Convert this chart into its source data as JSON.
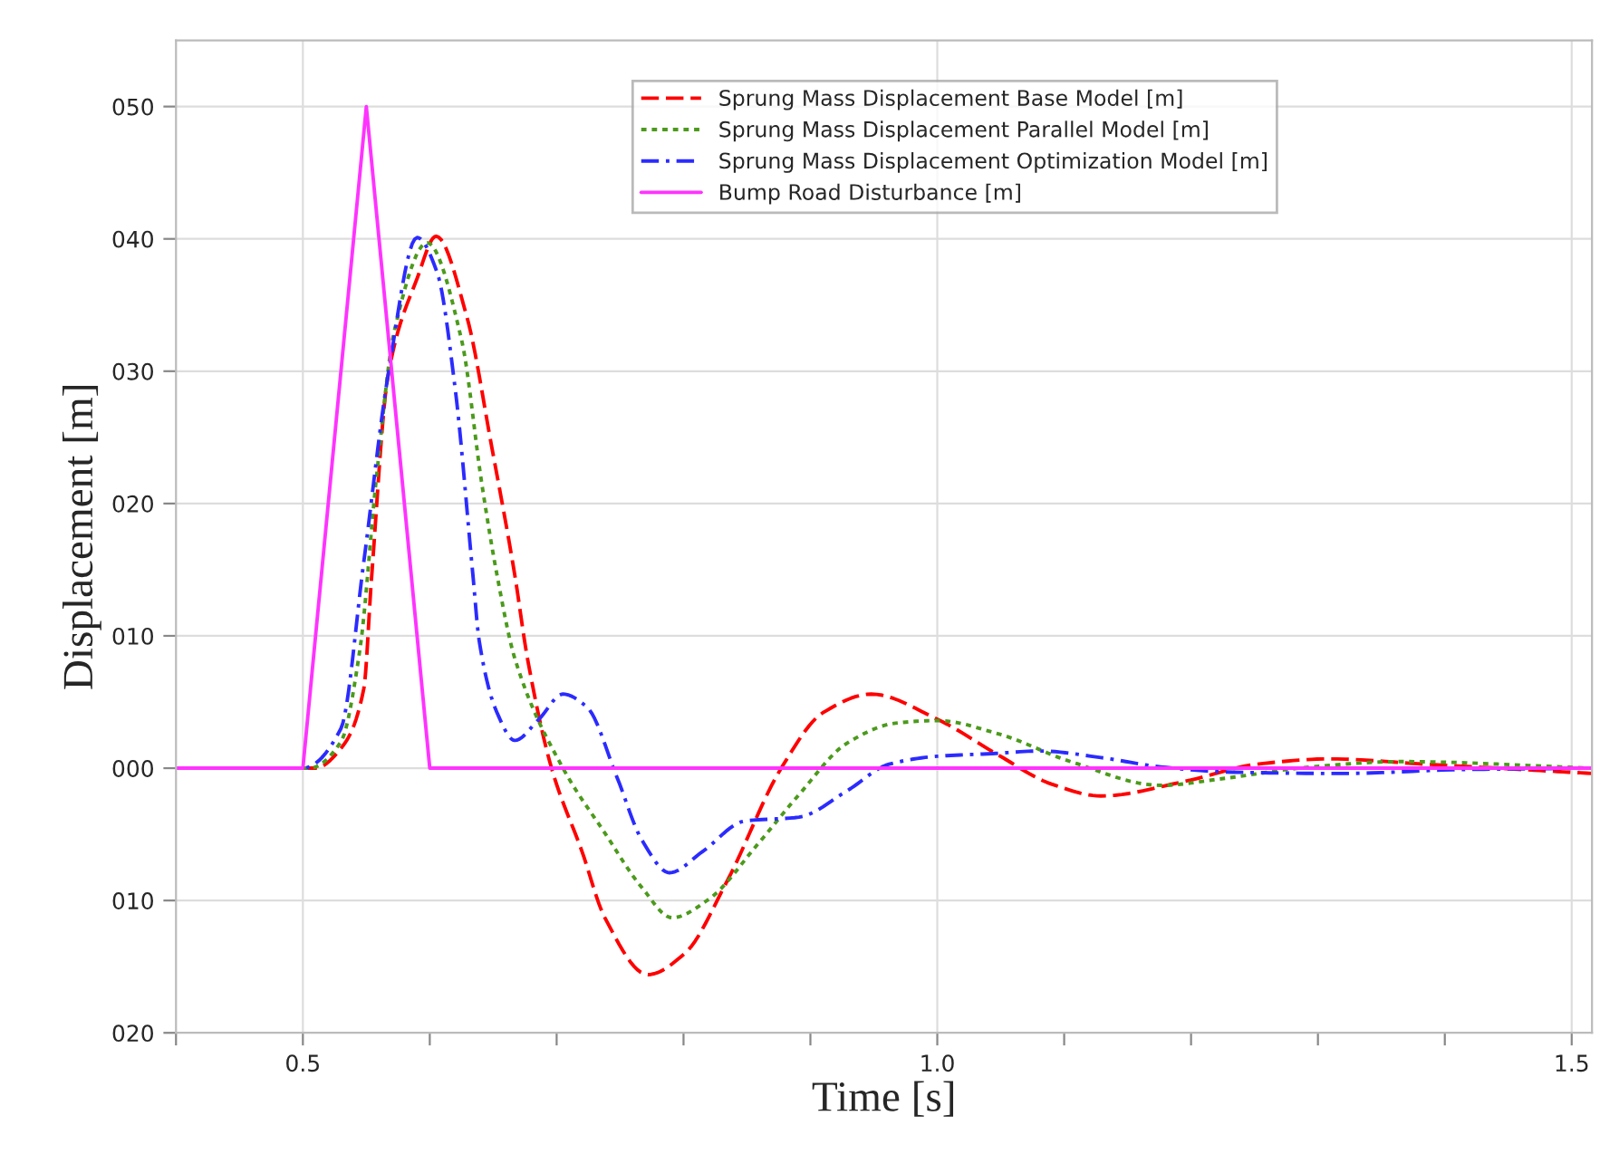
{
  "chart_data": {
    "type": "line",
    "xlabel": "Time [s]",
    "ylabel": "Displacement [m]",
    "xlim": [
      0.4,
      1.516
    ],
    "ylim": [
      -20,
      55
    ],
    "xticks": [
      {
        "value": 0.4,
        "label": null
      },
      {
        "value": 0.5,
        "label": "0.5"
      },
      {
        "value": 0.6,
        "label": null
      },
      {
        "value": 0.7,
        "label": null
      },
      {
        "value": 0.8,
        "label": null
      },
      {
        "value": 0.9,
        "label": null
      },
      {
        "value": 1.0,
        "label": "1.0"
      },
      {
        "value": 1.1,
        "label": null
      },
      {
        "value": 1.2,
        "label": null
      },
      {
        "value": 1.3,
        "label": null
      },
      {
        "value": 1.4,
        "label": null
      },
      {
        "value": 1.5,
        "label": "1.5"
      }
    ],
    "yticks": [
      {
        "value": -20,
        "label": "020"
      },
      {
        "value": -10,
        "label": "010"
      },
      {
        "value": 0,
        "label": "000"
      },
      {
        "value": 10,
        "label": "010"
      },
      {
        "value": 20,
        "label": "020"
      },
      {
        "value": 30,
        "label": "030"
      },
      {
        "value": 40,
        "label": "040"
      },
      {
        "value": 50,
        "label": "050"
      }
    ],
    "grid": true,
    "legend": "top center",
    "series": [
      {
        "name": "Sprung Mass Displacement Base Model [m]",
        "color": "#ff0000",
        "line_style": "dashed",
        "x": [
          0.4,
          0.51,
          0.53,
          0.548,
          0.554,
          0.567,
          0.59,
          0.605,
          0.629,
          0.649,
          0.667,
          0.677,
          0.696,
          0.72,
          0.738,
          0.772,
          0.801,
          0.834,
          0.877,
          0.91,
          0.948,
          1.0,
          1.048,
          1.09,
          1.129,
          1.195,
          1.252,
          1.309,
          1.385,
          1.461,
          1.516
        ],
        "values": [
          0,
          0,
          1.5,
          6,
          14.2,
          29.6,
          37,
          40.2,
          34.2,
          24.2,
          14.6,
          8.3,
          0,
          -6.3,
          -11.3,
          -15.6,
          -14,
          -8.6,
          0,
          4.2,
          5.6,
          3.7,
          1,
          -1.2,
          -2.1,
          -1,
          0.3,
          0.7,
          0.3,
          -0.1,
          -0.4
        ]
      },
      {
        "name": "Sprung Mass Displacement Parallel Model [m]",
        "color": "#4c9a1c",
        "line_style": "dotted",
        "x": [
          0.4,
          0.505,
          0.53,
          0.545,
          0.558,
          0.572,
          0.598,
          0.625,
          0.641,
          0.653,
          0.667,
          0.705,
          0.738,
          0.767,
          0.791,
          0.82,
          0.858,
          0.891,
          0.929,
          0.967,
          1.0,
          1.048,
          1.105,
          1.176,
          1.224,
          1.295,
          1.366,
          1.516
        ],
        "values": [
          0,
          0,
          2,
          9,
          22,
          33,
          39.7,
          32.4,
          21.5,
          14.6,
          8.3,
          0,
          -4.9,
          -9,
          -11.3,
          -9.9,
          -5.8,
          -2,
          1.9,
          3.4,
          3.6,
          2.6,
          0.5,
          -1.3,
          -0.8,
          0.1,
          0.5,
          0
        ]
      },
      {
        "name": "Sprung Mass Displacement Optimization Model [m]",
        "color": "#2b2bff",
        "line_style": "dashdot",
        "x": [
          0.4,
          0.5,
          0.53,
          0.548,
          0.567,
          0.59,
          0.606,
          0.62,
          0.634,
          0.639,
          0.653,
          0.667,
          0.686,
          0.705,
          0.724,
          0.748,
          0.767,
          0.789,
          0.815,
          0.848,
          0.891,
          0.929,
          0.962,
          1.0,
          1.043,
          1.081,
          1.129,
          1.176,
          1.233,
          1.319,
          1.414,
          1.516
        ],
        "values": [
          0,
          0,
          3,
          15.6,
          29.6,
          40.1,
          37.4,
          28.7,
          14.6,
          9.6,
          4.2,
          2.1,
          3.7,
          5.6,
          4.6,
          -0.8,
          -5.4,
          -7.9,
          -6.3,
          -4,
          -3.7,
          -1.7,
          0.3,
          0.9,
          1.1,
          1.3,
          0.8,
          0.1,
          -0.3,
          -0.4,
          -0.1,
          0
        ]
      },
      {
        "name": "Bump Road Disturbance [m]",
        "color": "#ff33ff",
        "line_style": "solid",
        "x": [
          0.4,
          0.5,
          0.55,
          0.6,
          1.516
        ],
        "values": [
          0,
          0,
          50,
          0,
          0
        ]
      }
    ]
  }
}
